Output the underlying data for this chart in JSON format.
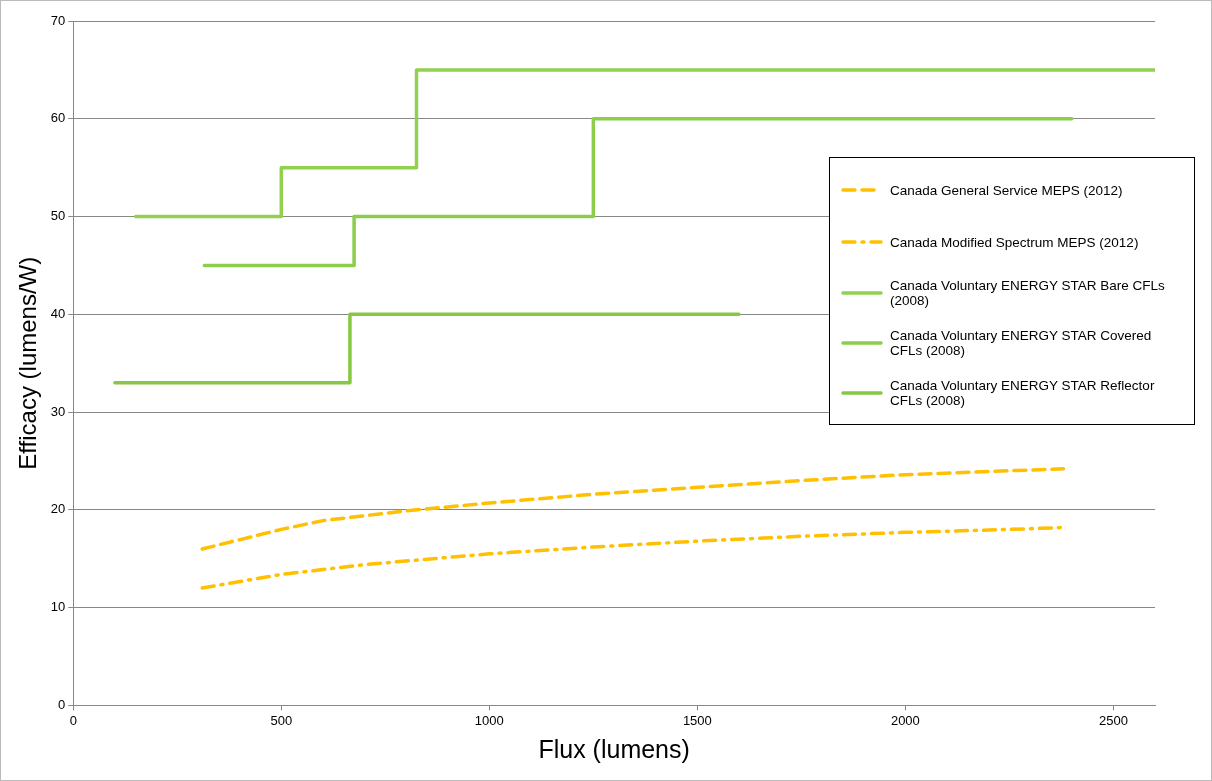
{
  "chart_data": {
    "type": "line",
    "xlabel": "Flux (lumens)",
    "ylabel": "Efficacy (lumens/W)",
    "xlim": [
      0,
      2600
    ],
    "xticks": [
      0,
      500,
      1000,
      1500,
      2000,
      2500
    ],
    "ylim": [
      0,
      70
    ],
    "yticks": [
      0,
      10,
      20,
      30,
      40,
      50,
      60,
      70
    ],
    "grid": "y",
    "legend": "right",
    "marker": "none",
    "series": [
      {
        "name": "Canada General  Service MEPS (2012)",
        "type": "line",
        "line_style": "dashed",
        "color": "#ffc000",
        "x": [
          310,
          500,
          600,
          800,
          1000,
          1250,
          1500,
          1750,
          2000,
          2250,
          2380
        ],
        "values": [
          16,
          18,
          18.9,
          19.9,
          20.7,
          21.6,
          22.3,
          23,
          23.6,
          24,
          24.2
        ]
      },
      {
        "name": "Canada Modified Spectrum MEPS (2012)",
        "type": "line",
        "line_style": "dashdot",
        "color": "#ffc000",
        "x": [
          310,
          500,
          700,
          1000,
          1250,
          1500,
          1750,
          2000,
          2250,
          2380
        ],
        "values": [
          12,
          13.4,
          14.4,
          15.5,
          16.2,
          16.8,
          17.3,
          17.7,
          18,
          18.2
        ]
      },
      {
        "name": "Canada Voluntary ENERGY STAR Bare CFLs (2008)",
        "type": "step",
        "line_style": "solid",
        "color": "#92d050",
        "x": [
          150,
          500,
          825,
          2600
        ],
        "values": [
          50,
          55,
          65,
          65
        ]
      },
      {
        "name": "Canada Voluntary ENERGY STAR Covered CFLs (2008)",
        "type": "step",
        "line_style": "solid",
        "color": "#8ccd4a",
        "x": [
          315,
          675,
          1250,
          2400
        ],
        "values": [
          45,
          50,
          60,
          60
        ]
      },
      {
        "name": "Canada Voluntary ENERGY STAR Reflector CFLs (2008)",
        "type": "step",
        "line_style": "solid",
        "color": "#86c843",
        "x": [
          100,
          665,
          1600
        ],
        "values": [
          33,
          40,
          40
        ]
      }
    ]
  }
}
